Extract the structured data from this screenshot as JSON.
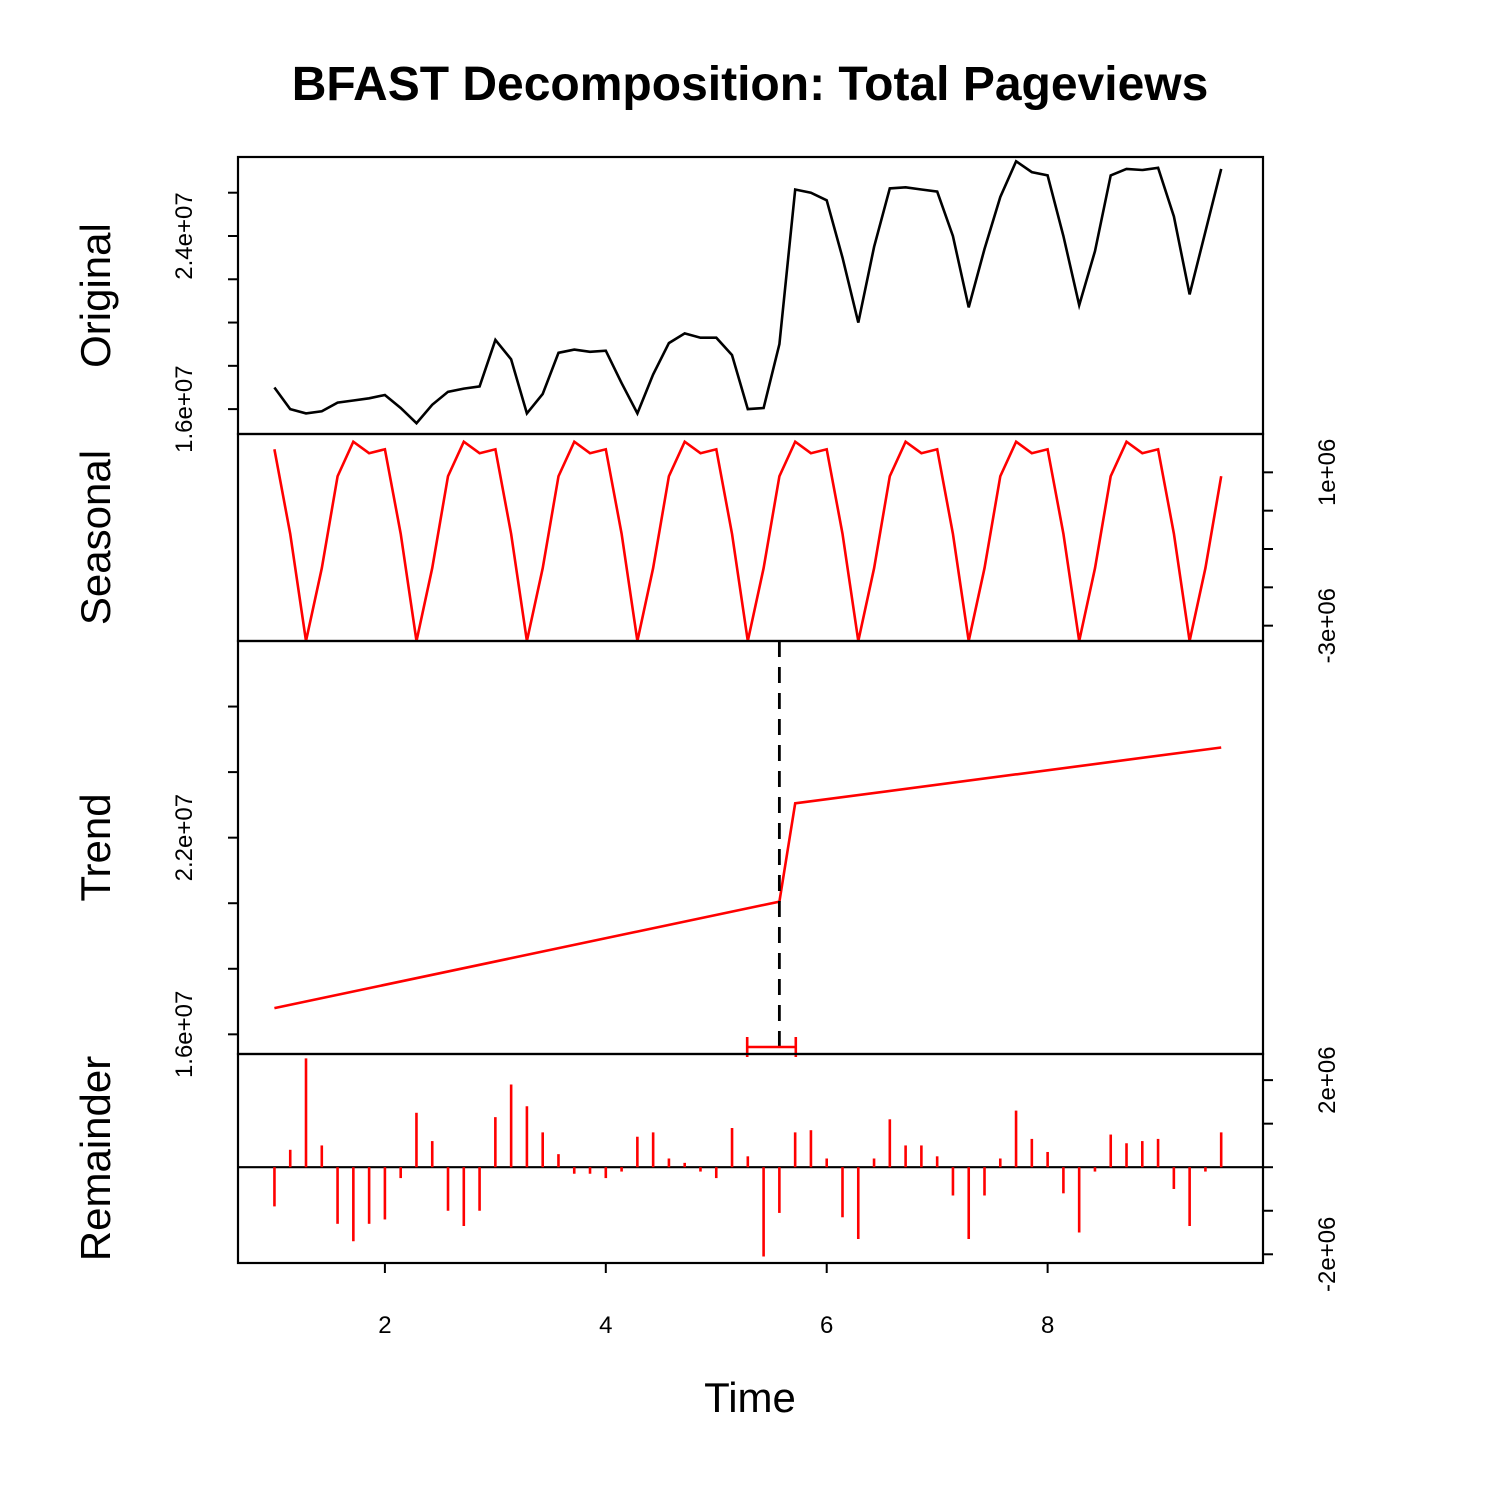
{
  "chart_data": {
    "type": "line",
    "title": "BFAST Decomposition: Total Pageviews",
    "xlabel": "Time",
    "xlim": [
      0.67,
      9.95
    ],
    "x_ticks": [
      2,
      4,
      6,
      8
    ],
    "x": [
      1.0,
      1.1429,
      1.2857,
      1.4286,
      1.5714,
      1.7143,
      1.8571,
      2.0,
      2.1429,
      2.2857,
      2.4286,
      2.5714,
      2.7143,
      2.8571,
      3.0,
      3.1429,
      3.2857,
      3.4286,
      3.5714,
      3.7143,
      3.8571,
      4.0,
      4.1429,
      4.2857,
      4.4286,
      4.5714,
      4.7143,
      4.8571,
      5.0,
      5.1429,
      5.2857,
      5.4286,
      5.5714,
      5.7143,
      5.8571,
      6.0,
      6.1429,
      6.2857,
      6.4286,
      6.5714,
      6.7143,
      6.8571,
      7.0,
      7.1429,
      7.2857,
      7.4286,
      7.5714,
      7.7143,
      7.8571,
      8.0,
      8.1429,
      8.2857,
      8.4286,
      8.5714,
      8.7143,
      8.8571,
      9.0,
      9.1429,
      9.2857,
      9.4286,
      9.5714
    ],
    "panels": [
      {
        "name": "Original",
        "color": "#000000",
        "style": "line",
        "ylim": [
          14850000,
          27650000
        ],
        "y_ticks": [
          16000000,
          18000000,
          20000000,
          22000000,
          24000000,
          26000000
        ],
        "tick_labels": [
          {
            "value": 16000000,
            "text": "1.6e+07"
          },
          {
            "value": 24000000,
            "text": "2.4e+07"
          }
        ],
        "label_side": "left",
        "values": [
          17000000,
          16000000,
          15800000,
          15900000,
          16300000,
          16400000,
          16500000,
          16650000,
          16050000,
          15350000,
          16200000,
          16800000,
          16950000,
          17050000,
          19200000,
          18300000,
          15800000,
          16700000,
          18600000,
          18750000,
          18650000,
          18700000,
          17200000,
          15800000,
          17600000,
          19050000,
          19500000,
          19300000,
          19300000,
          18500000,
          16000000,
          16050000,
          19000000,
          26150000,
          26000000,
          25650000,
          23000000,
          20000000,
          23500000,
          26200000,
          26250000,
          26150000,
          26050000,
          24000000,
          20700000,
          23400000,
          25800000,
          27450000,
          26950000,
          26800000,
          24000000,
          20800000,
          23300000,
          26800000,
          27100000,
          27050000,
          27150000,
          24900000,
          21300000,
          24200000,
          27100000
        ]
      },
      {
        "name": "Seasonal",
        "color": "#ff0000",
        "style": "line",
        "ylim": [
          -3400000,
          2000000
        ],
        "y_ticks": [
          -3000000,
          -2000000,
          -1000000,
          0,
          1000000
        ],
        "tick_labels": [
          {
            "value": -3000000,
            "text": "-3e+06"
          },
          {
            "value": 1000000,
            "text": "1e+06"
          }
        ],
        "label_side": "right",
        "values": [
          1600000,
          -600000,
          -3400000,
          -1500000,
          900000,
          1800000,
          1500000,
          1600000,
          -600000,
          -3400000,
          -1500000,
          900000,
          1800000,
          1500000,
          1600000,
          -600000,
          -3400000,
          -1500000,
          900000,
          1800000,
          1500000,
          1600000,
          -600000,
          -3400000,
          -1500000,
          900000,
          1800000,
          1500000,
          1600000,
          -600000,
          -3400000,
          -1500000,
          900000,
          1800000,
          1500000,
          1600000,
          -600000,
          -3400000,
          -1500000,
          900000,
          1800000,
          1500000,
          1600000,
          -600000,
          -3400000,
          -1500000,
          900000,
          1800000,
          1500000,
          1600000,
          -600000,
          -3400000,
          -1500000,
          900000,
          1800000,
          1500000,
          1600000,
          -600000,
          -3400000,
          -1500000,
          900000
        ]
      },
      {
        "name": "Trend",
        "color": "#ff0000",
        "style": "line",
        "ylim": [
          15400000,
          28000000
        ],
        "y_ticks": [
          16000000,
          18000000,
          20000000,
          22000000,
          24000000,
          26000000
        ],
        "tick_labels": [
          {
            "value": 16000000,
            "text": "1.6e+07"
          },
          {
            "value": 22000000,
            "text": "2.2e+07"
          }
        ],
        "label_side": "left",
        "points": [
          [
            1.0,
            16800000
          ],
          [
            5.5714,
            20050000
          ],
          [
            5.7143,
            23050000
          ],
          [
            9.5714,
            24750000
          ]
        ],
        "breakpoint": 5.5714,
        "breakpoint_ci": [
          5.28,
          5.72
        ]
      },
      {
        "name": "Remainder",
        "color": "#ff0000",
        "style": "bars",
        "ylim": [
          -2200000,
          2600000
        ],
        "y_ticks": [
          -2000000,
          -1000000,
          0,
          1000000,
          2000000
        ],
        "tick_labels": [
          {
            "value": -2000000,
            "text": "-2e+06"
          },
          {
            "value": 2000000,
            "text": "2e+06"
          }
        ],
        "label_side": "right",
        "values": [
          -900000,
          400000,
          2500000,
          500000,
          -1300000,
          -1700000,
          -1300000,
          -1200000,
          -250000,
          1250000,
          600000,
          -1000000,
          -1350000,
          -1000000,
          1150000,
          1900000,
          1400000,
          800000,
          300000,
          -150000,
          -150000,
          -250000,
          -100000,
          700000,
          800000,
          200000,
          100000,
          -100000,
          -250000,
          900000,
          250000,
          -2050000,
          -1050000,
          800000,
          850000,
          200000,
          -1150000,
          -1650000,
          200000,
          1100000,
          500000,
          500000,
          250000,
          -650000,
          -1650000,
          -650000,
          200000,
          1300000,
          650000,
          350000,
          -600000,
          -1500000,
          -100000,
          750000,
          550000,
          600000,
          650000,
          -500000,
          -1350000,
          -100000,
          800000
        ]
      }
    ]
  }
}
